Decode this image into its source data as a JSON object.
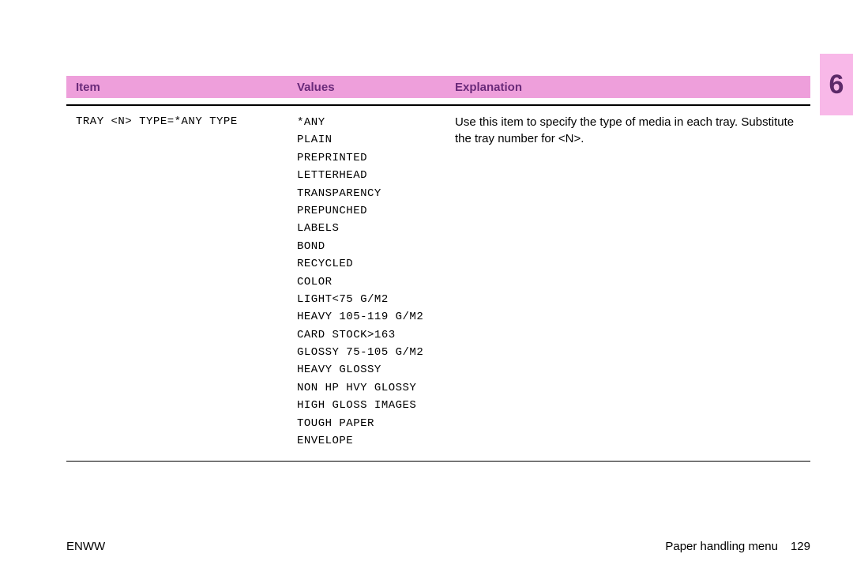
{
  "chapterTab": {
    "number": "6",
    "background": "#f8b8e8",
    "textColor": "#5c2a69"
  },
  "headerBar": {
    "background": "#ee9fdb",
    "textColor": "#6a2a7a",
    "columns": {
      "item": "Item",
      "values": "Values",
      "explanation": "Explanation"
    }
  },
  "row": {
    "item": "TRAY <N> TYPE=*ANY TYPE",
    "values": [
      "*ANY",
      "PLAIN",
      "PREPRINTED",
      "LETTERHEAD",
      "TRANSPARENCY",
      "PREPUNCHED",
      "LABELS",
      "BOND",
      "RECYCLED",
      "COLOR",
      "LIGHT<75 G/M2",
      "HEAVY 105-119 G/M2",
      "CARD STOCK>163",
      "GLOSSY 75-105 G/M2",
      "HEAVY GLOSSY",
      "NON HP HVY GLOSSY",
      "HIGH GLOSS IMAGES",
      "TOUGH PAPER",
      "ENVELOPE"
    ],
    "explanation": "Use this item to specify the type of media in each tray. Substitute the tray number for <N>."
  },
  "footer": {
    "left": "ENWW",
    "rightLabel": "Paper handling menu",
    "pageNumber": "129"
  }
}
